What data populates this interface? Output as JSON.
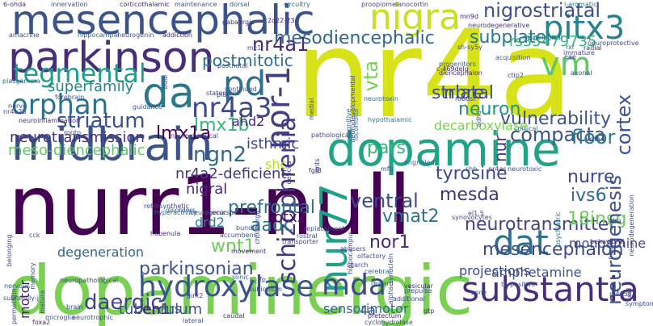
{
  "word_cloud": {
    "words": [
      {
        "text": "nurr1-null",
        "color": "#440154",
        "size": "xl"
      },
      {
        "text": "nr4a",
        "color": "#d8e219",
        "size": "xl"
      },
      {
        "text": "dopaminergic",
        "color": "#7ad151",
        "size": "l"
      },
      {
        "text": "midbrain",
        "color": "#3b528b",
        "size": "l"
      },
      {
        "text": "dopamine",
        "color": "#20a386",
        "size": "l"
      },
      {
        "text": "parkinson",
        "color": "#472d7b",
        "size": "l"
      },
      {
        "text": "mesencephalic",
        "color": "#3b528b",
        "size": "l"
      },
      {
        "text": "substantia",
        "color": "#472d7b",
        "size": "m"
      },
      {
        "text": "hydroxylase",
        "color": "#39568c",
        "size": "m"
      },
      {
        "text": "nigra",
        "color": "#c8e020",
        "size": "m"
      },
      {
        "text": "pitx3",
        "color": "#26828e",
        "size": "m"
      },
      {
        "text": "da",
        "color": "#2a788e",
        "size": "m"
      },
      {
        "text": "pd",
        "color": "#2c728e",
        "size": "m"
      },
      {
        "text": "nor-1",
        "color": "#433e85",
        "size": "m"
      },
      {
        "text": "nur77",
        "color": "#1fa088",
        "size": "m"
      },
      {
        "text": "tegmental",
        "color": "#1f9e89",
        "size": "m"
      },
      {
        "text": "orphan",
        "color": "#2c728e",
        "size": "m"
      },
      {
        "text": "dat",
        "color": "#2c728e",
        "size": "m"
      },
      {
        "text": "vm",
        "color": "#5ec962",
        "size": "m"
      },
      {
        "text": "mda",
        "color": "#3e4989",
        "size": "m"
      },
      {
        "text": "nr4a3",
        "color": "#3e4989",
        "size": "m"
      },
      {
        "text": "ngn2",
        "color": "#31688e",
        "size": "s"
      },
      {
        "text": "schizophrenia",
        "color": "#443983",
        "size": "s"
      },
      {
        "text": "nr4a1",
        "color": "#482878",
        "size": "s"
      },
      {
        "text": "postmitotic",
        "color": "#2c728e",
        "size": "s"
      },
      {
        "text": "mesodiencephalic",
        "color": "#31688e",
        "size": "s"
      },
      {
        "text": "nigrostriatal",
        "color": "#3b528b",
        "size": "s"
      },
      {
        "text": "subplate",
        "color": "#2a788e",
        "size": "s"
      },
      {
        "text": "rs35479735",
        "color": "#35b779",
        "size": "s"
      },
      {
        "text": "mesencephalon",
        "color": "#3e4989",
        "size": "s"
      },
      {
        "text": "compacta",
        "color": "#3b528b",
        "size": "s"
      },
      {
        "text": "striatum",
        "color": "#3b528b",
        "size": "s"
      },
      {
        "text": "superfamily",
        "color": "#26828e",
        "size": "s"
      },
      {
        "text": "mesda",
        "color": "#46337e",
        "size": "s"
      },
      {
        "text": "tyrosine",
        "color": "#3e4989",
        "size": "s"
      },
      {
        "text": "nbre",
        "color": "#3e4989",
        "size": "s"
      },
      {
        "text": "neuron",
        "color": "#21918c",
        "size": "s"
      },
      {
        "text": "ventral",
        "color": "#3e4989",
        "size": "s"
      },
      {
        "text": "daergic",
        "color": "#414487",
        "size": "s"
      },
      {
        "text": "prefrontal",
        "color": "#2c728e",
        "size": "s"
      },
      {
        "text": "aadc",
        "color": "#2a788e",
        "size": "s"
      },
      {
        "text": "wnt1",
        "color": "#6ccd5a",
        "size": "s"
      },
      {
        "text": "nor1",
        "color": "#482878",
        "size": "s"
      },
      {
        "text": "ivs6",
        "color": "#31688e",
        "size": "s"
      },
      {
        "text": "vmat2",
        "color": "#2c728e",
        "size": "s"
      },
      {
        "text": "nurre",
        "color": "#3e4989",
        "size": "s"
      },
      {
        "text": "neurotransmitter",
        "color": "#414487",
        "size": "s"
      },
      {
        "text": "18insg",
        "color": "#6ccd5a",
        "size": "s"
      },
      {
        "text": "lmx1b",
        "color": "#35b779",
        "size": "s"
      },
      {
        "text": "lmx1a",
        "color": "#440154",
        "size": "s"
      },
      {
        "text": "nigral",
        "color": "#482878",
        "size": "s"
      },
      {
        "text": "parkinsonian",
        "color": "#3b528b",
        "size": "s"
      },
      {
        "text": "meso-diencephalic",
        "color": "#5ec962",
        "size": "s"
      },
      {
        "text": "nr4a2-deficient",
        "color": "#453781",
        "size": "s"
      },
      {
        "text": "neurotransmission",
        "color": "#46337e",
        "size": "s"
      },
      {
        "text": "isthmic",
        "color": "#3e4989",
        "size": "s"
      },
      {
        "text": "vulnerability",
        "color": "#3b528b",
        "size": "s"
      },
      {
        "text": "cortex",
        "color": "#3b528b",
        "size": "s"
      },
      {
        "text": "neurogenesis",
        "color": "#3b528b",
        "size": "s"
      },
      {
        "text": "floor",
        "color": "#2a788e",
        "size": "s"
      },
      {
        "text": "vta",
        "color": "#7ad151",
        "size": "s"
      },
      {
        "text": "striatal",
        "color": "#3b528b",
        "size": "s"
      },
      {
        "text": "pars",
        "color": "#35b779",
        "size": "s"
      },
      {
        "text": "nur",
        "color": "#46337e",
        "size": "s"
      },
      {
        "text": "projections",
        "color": "#3e4989",
        "size": "s"
      },
      {
        "text": "amphetamine",
        "color": "#3b528b",
        "size": "xs"
      },
      {
        "text": "tuberculum",
        "color": "#3b528b",
        "size": "xs"
      },
      {
        "text": "en1",
        "color": "#482878",
        "size": "s"
      },
      {
        "text": "otx2",
        "color": "#471063",
        "size": "s"
      },
      {
        "text": "drd2",
        "color": "#26828e",
        "size": "s"
      },
      {
        "text": "monoamine",
        "color": "#3e4989",
        "size": "xs"
      },
      {
        "text": "4a",
        "color": "#3b528b",
        "size": "xs"
      },
      {
        "text": "motor",
        "color": "#481a6c",
        "size": "xs"
      },
      {
        "text": "degeneration",
        "color": "#31688e",
        "size": "xs"
      },
      {
        "text": "hrs",
        "color": "#31688e",
        "size": "xs"
      },
      {
        "text": "sensorimotor",
        "color": "#31688e",
        "size": "xs"
      },
      {
        "text": "decarboxylase",
        "color": "#7ad151",
        "size": "xs"
      },
      {
        "text": "ahd2",
        "color": "#482878",
        "size": "xs"
      },
      {
        "text": "shc",
        "color": "#b5de2b",
        "size": "xs"
      },
      {
        "text": "6-ohda",
        "color": "#46337e",
        "size": "xs"
      },
      {
        "text": "innervation",
        "color": "#3b528b",
        "size": "xxs"
      },
      {
        "text": "corticothalamic",
        "color": "#472d7b",
        "size": "xxs"
      },
      {
        "text": "maintenance",
        "color": "#3b528b",
        "size": "xxs"
      },
      {
        "text": "dorsal",
        "color": "#38598c",
        "size": "xxs"
      },
      {
        "text": "circuitry",
        "color": "#31688e",
        "size": "xxs"
      },
      {
        "text": "proopiomelanocortin",
        "color": "#3e4989",
        "size": "xxs"
      },
      {
        "text": "l-aromatic",
        "color": "#2a788e",
        "size": "xxs"
      },
      {
        "text": "amacrine",
        "color": "#3e4989",
        "size": "xxs"
      },
      {
        "text": "hippocampal",
        "color": "#31688e",
        "size": "xxs"
      },
      {
        "text": "neurogenin",
        "color": "#3b528b",
        "size": "xxs"
      },
      {
        "text": "addiction",
        "color": "#481a6c",
        "size": "xxs"
      },
      {
        "text": "gabaergic",
        "color": "#46337e",
        "size": "xxs"
      },
      {
        "text": "2q22-23",
        "color": "#482878",
        "size": "xxs"
      },
      {
        "text": "mn9d",
        "color": "#482878",
        "size": "xxs"
      },
      {
        "text": "neurodegenerative",
        "color": "#46337e",
        "size": "xxs"
      },
      {
        "text": "neurological",
        "color": "#31688e",
        "size": "xxs"
      },
      {
        "text": "sh-sy5y",
        "color": "#3e4989",
        "size": "xxs"
      },
      {
        "text": "progenitors",
        "color": "#31688e",
        "size": "xxs"
      },
      {
        "text": "rxr",
        "color": "#3b528b",
        "size": "xxs"
      },
      {
        "text": "radial",
        "color": "#472d7b",
        "size": "xxs"
      },
      {
        "text": "acquisition",
        "color": "#31688e",
        "size": "xxs"
      },
      {
        "text": "c-469delg",
        "color": "#482878",
        "size": "xxs"
      },
      {
        "text": "diencephalon",
        "color": "#46337e",
        "size": "xxs"
      },
      {
        "text": "axonal",
        "color": "#3b528b",
        "size": "xxs"
      },
      {
        "text": "piasgamma",
        "color": "#31688e",
        "size": "xxs"
      },
      {
        "text": "forebrain",
        "color": "#3b528b",
        "size": "xxs"
      },
      {
        "text": "nr4a2b",
        "color": "#3e4989",
        "size": "xxs"
      },
      {
        "text": "neuroinflammation",
        "color": "#46337e",
        "size": "xxs"
      },
      {
        "text": "hypothalamic",
        "color": "#2a788e",
        "size": "xxs"
      },
      {
        "text": "neurotoxin",
        "color": "#31688e",
        "size": "xxs"
      },
      {
        "text": "cognitive",
        "color": "#31688e",
        "size": "xxs"
      },
      {
        "text": "locomotor",
        "color": "#31688e",
        "size": "xxs"
      },
      {
        "text": "cortical",
        "color": "#2a788e",
        "size": "xxs"
      },
      {
        "text": "adhd",
        "color": "#3b528b",
        "size": "xxs"
      },
      {
        "text": "vmb",
        "color": "#3e4989",
        "size": "xxs"
      },
      {
        "text": "deficits",
        "color": "#472d7b",
        "size": "xxs"
      },
      {
        "text": "fgf8",
        "color": "#482878",
        "size": "xxs"
      },
      {
        "text": "engrailed",
        "color": "#31688e",
        "size": "xxs"
      },
      {
        "text": "mfb",
        "color": "#3b528b",
        "size": "xxs"
      },
      {
        "text": "wnts",
        "color": "#3e4989",
        "size": "xxs"
      },
      {
        "text": "shh",
        "color": "#3b528b",
        "size": "xxs"
      },
      {
        "text": "neurotoxic",
        "color": "#3b528b",
        "size": "xxs"
      },
      {
        "text": "nr4as",
        "color": "#482878",
        "size": "xxs"
      },
      {
        "text": "disorders",
        "color": "#3b528b",
        "size": "xxs"
      },
      {
        "text": "precursors",
        "color": "#482878",
        "size": "xxs"
      },
      {
        "text": "bundle",
        "color": "#3b528b",
        "size": "xxs"
      },
      {
        "text": "neurogenic",
        "color": "#3b528b",
        "size": "xxs"
      },
      {
        "text": "hyperactivity",
        "color": "#31688e",
        "size": "xxs"
      },
      {
        "text": "accumbens",
        "color": "#3b528b",
        "size": "xxs"
      },
      {
        "text": "movement",
        "color": "#472d7b",
        "size": "xxs"
      },
      {
        "text": "transporter",
        "color": "#3e4989",
        "size": "xxs"
      },
      {
        "text": "hippocampus",
        "color": "#3e4989",
        "size": "xxs"
      },
      {
        "text": "psychiatric",
        "color": "#2a788e",
        "size": "xxs"
      },
      {
        "text": "neurodegeneration",
        "color": "#3b528b",
        "size": "xxs"
      },
      {
        "text": "behavioral",
        "color": "#482878",
        "size": "xxs"
      },
      {
        "text": "cck",
        "color": "#3b528b",
        "size": "xxs"
      },
      {
        "text": "nervous",
        "color": "#31688e",
        "size": "xxs"
      },
      {
        "text": "habenula",
        "color": "#482878",
        "size": "xxs"
      },
      {
        "text": "vesicular",
        "color": "#482878",
        "size": "xxs"
      },
      {
        "text": "prepulse",
        "color": "#3b528b",
        "size": "xxs"
      },
      {
        "text": "zone",
        "color": "#3b528b",
        "size": "xxs"
      },
      {
        "text": "th-positive",
        "color": "#3b528b",
        "size": "xxs"
      },
      {
        "text": "brain",
        "color": "#3b528b",
        "size": "xxs"
      },
      {
        "text": "sonic",
        "color": "#31688e",
        "size": "xxs"
      },
      {
        "text": "hc",
        "color": "#3e4989",
        "size": "xxs"
      },
      {
        "text": "olfactory",
        "color": "#3b528b",
        "size": "xxs"
      },
      {
        "text": "cerebral",
        "color": "#31688e",
        "size": "xxs"
      },
      {
        "text": "reward",
        "color": "#31688e",
        "size": "xxs"
      },
      {
        "text": "microglia",
        "color": "#3b528b",
        "size": "xxs"
      },
      {
        "text": "neurotrophic",
        "color": "#3b528b",
        "size": "xxs"
      },
      {
        "text": "foxa2",
        "color": "#482878",
        "size": "xxs"
      },
      {
        "text": "lateral",
        "color": "#3b528b",
        "size": "xxs"
      },
      {
        "text": "caudal",
        "color": "#482878",
        "size": "xxs"
      },
      {
        "text": "cyclohydrolase",
        "color": "#3e4989",
        "size": "xxs"
      },
      {
        "text": "pretectum",
        "color": "#482878",
        "size": "xxs"
      },
      {
        "text": "gtp",
        "color": "#482878",
        "size": "xxs"
      },
      {
        "text": "fp",
        "color": "#3e4989",
        "size": "xxs"
      },
      {
        "text": "subiculum",
        "color": "#3e4989",
        "size": "xxs"
      },
      {
        "text": "abusers",
        "color": "#3e4989",
        "size": "xxs"
      },
      {
        "text": "statement",
        "color": "#3b528b",
        "size": "xxs"
      },
      {
        "text": "continued",
        "color": "#3b528b",
        "size": "xxs"
      },
      {
        "text": "plate",
        "color": "#3b528b",
        "size": "xxs"
      },
      {
        "text": "bulb",
        "color": "#3b528b",
        "size": "xxs"
      },
      {
        "text": "postnatal",
        "color": "#3b528b",
        "size": "xxs"
      },
      {
        "text": "mc1r",
        "color": "#3b528b",
        "size": "xxs"
      },
      {
        "text": "guidance",
        "color": "#3b528b",
        "size": "xxs"
      },
      {
        "text": "mptp",
        "color": "#3e4989",
        "size": "xxs"
      },
      {
        "text": "rostral",
        "color": "#3e4989",
        "size": "xxs"
      },
      {
        "text": "replacement",
        "color": "#3e4989",
        "size": "xxs"
      },
      {
        "text": "medial",
        "color": "#3e4989",
        "size": "xxs"
      },
      {
        "text": "pathological",
        "color": "#3e4989",
        "size": "xxs"
      },
      {
        "text": "nerve",
        "color": "#3e4989",
        "size": "xxs"
      },
      {
        "text": "immature",
        "color": "#3e4989",
        "size": "xxs"
      },
      {
        "text": "eae",
        "color": "#3e4989",
        "size": "xxs"
      },
      {
        "text": "ctip2",
        "color": "#3e4989",
        "size": "xxs"
      },
      {
        "text": "robust",
        "color": "#3e4989",
        "size": "xxs"
      },
      {
        "text": "el1.5",
        "color": "#3e4989",
        "size": "xxs"
      },
      {
        "text": "synovocytes",
        "color": "#3e4989",
        "size": "xxs"
      },
      {
        "text": "belonging",
        "color": "#3e4989",
        "size": "xxs"
      },
      {
        "text": "permethrin",
        "color": "#3e4989",
        "size": "xxs"
      },
      {
        "text": "memory",
        "color": "#3e4989",
        "size": "xxs"
      },
      {
        "text": "neuropathological",
        "color": "#3e4989",
        "size": "xxs"
      },
      {
        "text": "subfamily-j",
        "color": "#3e4989",
        "size": "xxs"
      },
      {
        "text": "matura",
        "color": "#3e4989",
        "size": "xxs"
      },
      {
        "text": "girk2",
        "color": "#3e4989",
        "size": "xxs"
      },
      {
        "text": "field",
        "color": "#3e4989",
        "size": "xxs"
      },
      {
        "text": "symptoms",
        "color": "#3e4989",
        "size": "xxs"
      },
      {
        "text": "neuroprotective",
        "color": "#3e4989",
        "size": "xxs"
      },
      {
        "text": "neurodevelopmental",
        "color": "#3e4989",
        "size": "xxs"
      },
      {
        "text": "alpha-synuclein",
        "color": "#3e4989",
        "size": "xxs"
      },
      {
        "text": "cholinergic",
        "color": "#3e4989",
        "size": "xxs"
      },
      {
        "text": "neural",
        "color": "#3e4989",
        "size": "xxs"
      },
      {
        "text": "rs4658",
        "color": "#3e4989",
        "size": "xxs"
      },
      {
        "text": "who",
        "color": "#3e4989",
        "size": "xxs"
      },
      {
        "text": "search",
        "color": "#3e4989",
        "size": "xxs"
      },
      {
        "text": "additional",
        "color": "#3e4989",
        "size": "xxs"
      },
      {
        "text": "retrosynthetic",
        "color": "#3e4989",
        "size": "xxs"
      },
      {
        "text": "neurochemical",
        "color": "#3e4989",
        "size": "xxs"
      }
    ]
  }
}
